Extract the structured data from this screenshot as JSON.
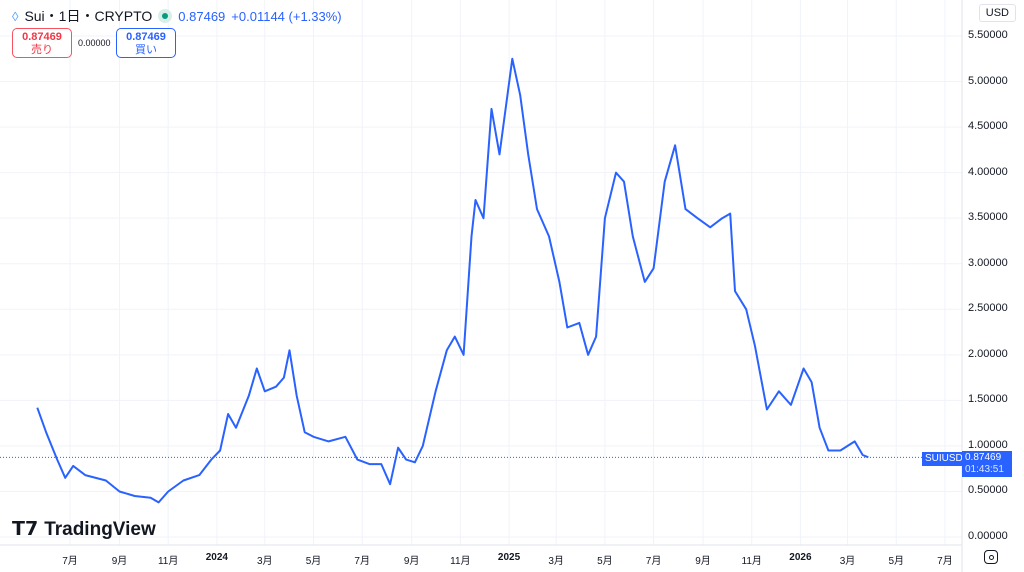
{
  "header": {
    "symbol": "Sui・1日・CRYPTO",
    "price": "0.87469",
    "change": "+0.01144 (+1.33%)",
    "status_color": "#089981"
  },
  "trade": {
    "sell_price": "0.87469",
    "sell_label": "売り",
    "spread": "0.00000",
    "buy_price": "0.87469",
    "buy_label": "買い"
  },
  "currency": "USD",
  "price_tag": {
    "symbol": "SUIUSD",
    "price": "0.87469",
    "countdown": "01:43:51"
  },
  "logo": "TradingView",
  "chart_data": {
    "type": "line",
    "line_color": "#2962ff",
    "ylim": [
      0,
      5.5
    ],
    "y_ticks": [
      "0.00000",
      "0.50000",
      "1.00000",
      "1.50000",
      "2.00000",
      "2.50000",
      "3.00000",
      "3.50000",
      "4.00000",
      "4.50000",
      "5.00000",
      "5.50000"
    ],
    "x_ticks": [
      [
        "2023-07-01",
        "7月"
      ],
      [
        "2023-09-01",
        "9月"
      ],
      [
        "2023-11-01",
        "11月"
      ],
      [
        "2024-01-01",
        "2024"
      ],
      [
        "2024-03-01",
        "3月"
      ],
      [
        "2024-05-01",
        "5月"
      ],
      [
        "2024-07-01",
        "7月"
      ],
      [
        "2024-09-01",
        "9月"
      ],
      [
        "2024-11-01",
        "11月"
      ],
      [
        "2025-01-01",
        "2025"
      ],
      [
        "2025-03-01",
        "3月"
      ],
      [
        "2025-05-01",
        "5月"
      ],
      [
        "2025-07-01",
        "7月"
      ],
      [
        "2025-09-01",
        "9月"
      ],
      [
        "2025-11-01",
        "11月"
      ],
      [
        "2026-01-01",
        "2026"
      ],
      [
        "2026-03-01",
        "3月"
      ],
      [
        "2026-05-01",
        "5月"
      ],
      [
        "2026-07-01",
        "7月"
      ]
    ],
    "series": [
      [
        "2023-05-21",
        1.42
      ],
      [
        "2023-06-01",
        1.15
      ],
      [
        "2023-06-15",
        0.85
      ],
      [
        "2023-06-25",
        0.65
      ],
      [
        "2023-07-05",
        0.78
      ],
      [
        "2023-07-20",
        0.68
      ],
      [
        "2023-08-15",
        0.62
      ],
      [
        "2023-09-01",
        0.5
      ],
      [
        "2023-09-20",
        0.45
      ],
      [
        "2023-10-10",
        0.43
      ],
      [
        "2023-10-20",
        0.38
      ],
      [
        "2023-11-01",
        0.5
      ],
      [
        "2023-11-20",
        0.62
      ],
      [
        "2023-12-10",
        0.68
      ],
      [
        "2023-12-25",
        0.85
      ],
      [
        "2024-01-05",
        0.95
      ],
      [
        "2024-01-15",
        1.35
      ],
      [
        "2024-01-25",
        1.2
      ],
      [
        "2024-02-10",
        1.55
      ],
      [
        "2024-02-20",
        1.85
      ],
      [
        "2024-03-01",
        1.6
      ],
      [
        "2024-03-15",
        1.65
      ],
      [
        "2024-03-25",
        1.75
      ],
      [
        "2024-04-01",
        2.05
      ],
      [
        "2024-04-10",
        1.55
      ],
      [
        "2024-04-20",
        1.15
      ],
      [
        "2024-05-01",
        1.1
      ],
      [
        "2024-05-20",
        1.05
      ],
      [
        "2024-06-10",
        1.1
      ],
      [
        "2024-06-25",
        0.85
      ],
      [
        "2024-07-10",
        0.8
      ],
      [
        "2024-07-25",
        0.8
      ],
      [
        "2024-08-05",
        0.58
      ],
      [
        "2024-08-15",
        0.98
      ],
      [
        "2024-08-25",
        0.85
      ],
      [
        "2024-09-05",
        0.82
      ],
      [
        "2024-09-15",
        1.0
      ],
      [
        "2024-10-01",
        1.6
      ],
      [
        "2024-10-15",
        2.05
      ],
      [
        "2024-10-25",
        2.2
      ],
      [
        "2024-11-05",
        2.0
      ],
      [
        "2024-11-15",
        3.3
      ],
      [
        "2024-11-20",
        3.7
      ],
      [
        "2024-11-30",
        3.5
      ],
      [
        "2024-12-10",
        4.7
      ],
      [
        "2024-12-20",
        4.2
      ],
      [
        "2025-01-05",
        5.25
      ],
      [
        "2025-01-15",
        4.85
      ],
      [
        "2025-01-25",
        4.2
      ],
      [
        "2025-02-05",
        3.6
      ],
      [
        "2025-02-20",
        3.3
      ],
      [
        "2025-03-05",
        2.8
      ],
      [
        "2025-03-15",
        2.3
      ],
      [
        "2025-03-30",
        2.35
      ],
      [
        "2025-04-10",
        2.0
      ],
      [
        "2025-04-20",
        2.2
      ],
      [
        "2025-05-01",
        3.5
      ],
      [
        "2025-05-15",
        4.0
      ],
      [
        "2025-05-25",
        3.9
      ],
      [
        "2025-06-05",
        3.3
      ],
      [
        "2025-06-20",
        2.8
      ],
      [
        "2025-07-01",
        2.95
      ],
      [
        "2025-07-15",
        3.9
      ],
      [
        "2025-07-28",
        4.3
      ],
      [
        "2025-08-10",
        3.6
      ],
      [
        "2025-08-25",
        3.5
      ],
      [
        "2025-09-10",
        3.4
      ],
      [
        "2025-09-25",
        3.5
      ],
      [
        "2025-10-05",
        3.55
      ],
      [
        "2025-10-11",
        2.7
      ],
      [
        "2025-10-25",
        2.5
      ],
      [
        "2025-11-05",
        2.1
      ],
      [
        "2025-11-20",
        1.4
      ],
      [
        "2025-12-05",
        1.6
      ],
      [
        "2025-12-20",
        1.45
      ],
      [
        "2026-01-05",
        1.85
      ],
      [
        "2026-01-15",
        1.7
      ],
      [
        "2026-01-25",
        1.2
      ],
      [
        "2026-02-05",
        0.95
      ],
      [
        "2026-02-20",
        0.95
      ],
      [
        "2026-03-10",
        1.05
      ],
      [
        "2026-03-20",
        0.9
      ],
      [
        "2026-03-27",
        0.87469
      ]
    ]
  }
}
